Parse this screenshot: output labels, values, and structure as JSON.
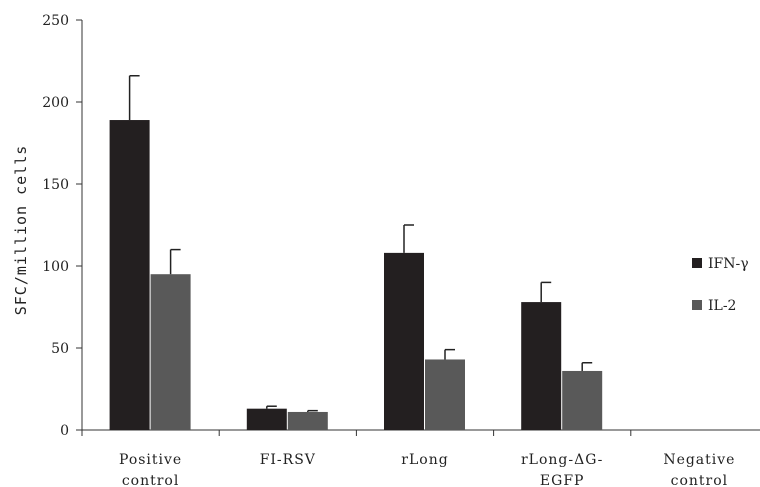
{
  "chart_data": {
    "type": "bar",
    "title": "",
    "xlabel": "",
    "ylabel": "SFC/million cells",
    "ylim": [
      0,
      250
    ],
    "yticks": [
      0,
      50,
      100,
      150,
      200,
      250
    ],
    "categories": [
      [
        "Positive",
        "control"
      ],
      [
        "FI-RSV"
      ],
      [
        "rLong"
      ],
      [
        "rLong-ΔG-",
        "EGFP"
      ],
      [
        "Negative",
        "control"
      ]
    ],
    "series": [
      {
        "name": "IFN-γ",
        "color": "#231f20",
        "values": [
          189,
          13,
          108,
          78,
          0
        ],
        "errors": [
          27,
          1.5,
          17,
          12,
          0
        ]
      },
      {
        "name": "IL-2",
        "color": "#595959",
        "values": [
          95,
          11,
          43,
          36,
          0
        ],
        "errors": [
          15,
          0.8,
          6,
          5,
          0
        ]
      }
    ],
    "legend": "right",
    "grid": false
  }
}
